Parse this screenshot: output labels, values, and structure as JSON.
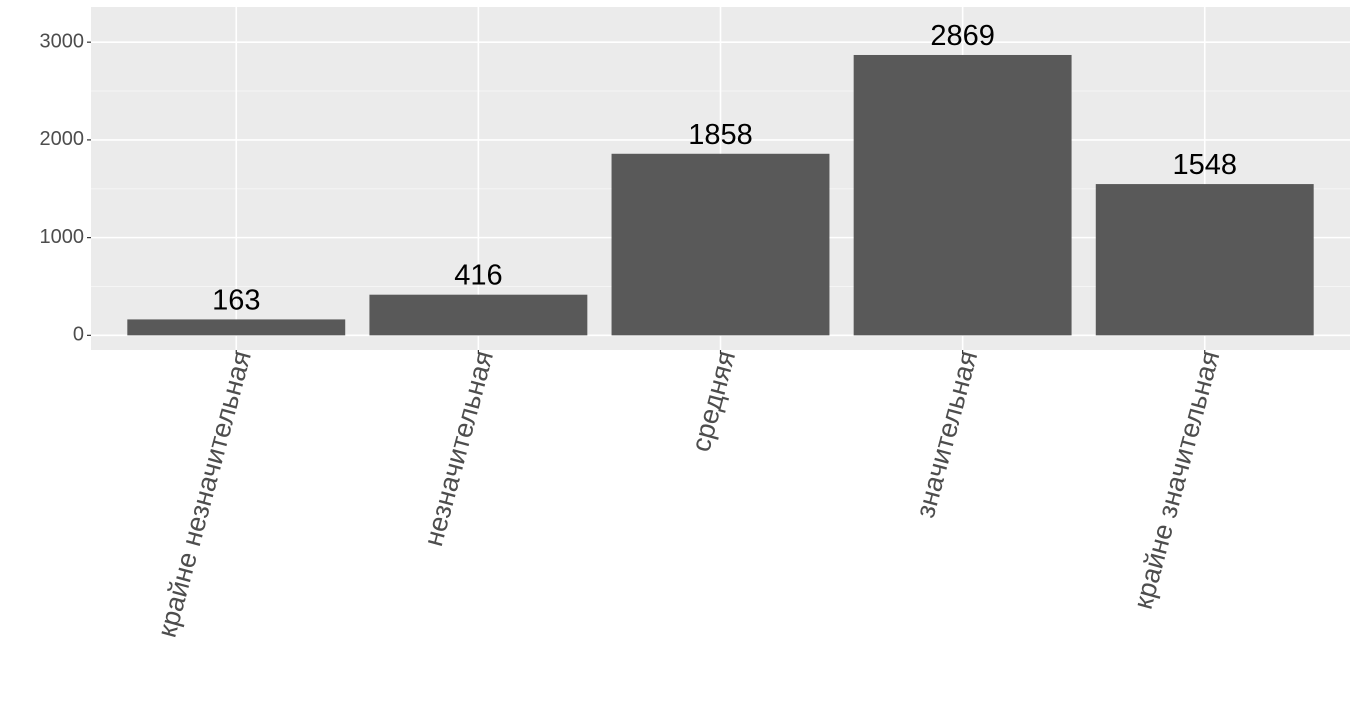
{
  "chart_data": {
    "type": "bar",
    "categories": [
      "крайне незначительная",
      "незначительная",
      "средняя",
      "значительная",
      "крайне значительная"
    ],
    "values": [
      163,
      416,
      1858,
      2869,
      1548
    ],
    "color": "#595959",
    "ylim": [
      -150,
      3360
    ],
    "yticks": [
      0,
      1000,
      2000,
      3000
    ],
    "grid": true
  }
}
